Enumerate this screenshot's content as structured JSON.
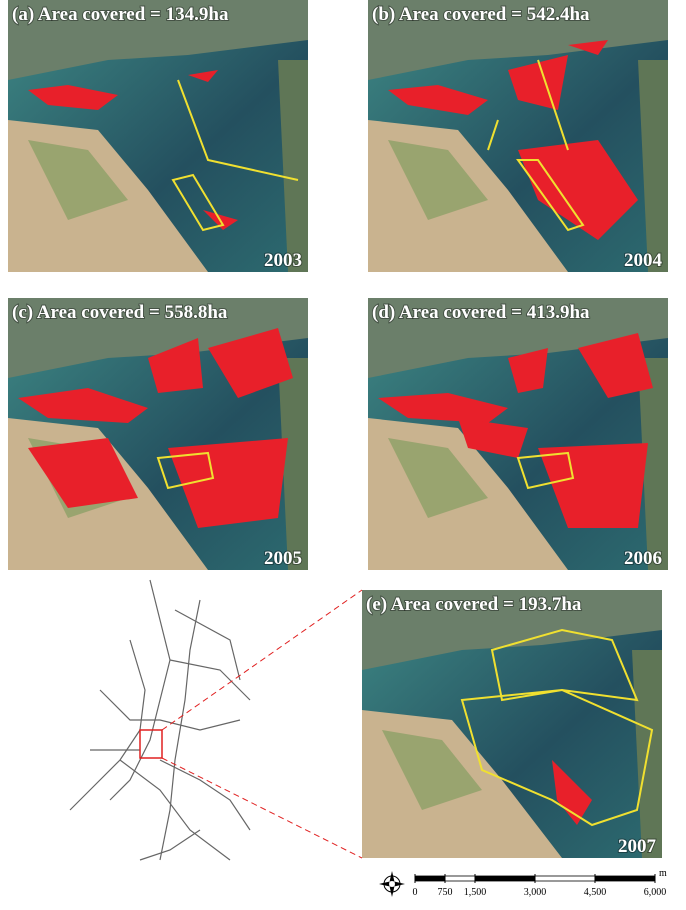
{
  "panels": [
    {
      "label": "(a) Area covered = 134.9ha",
      "year": "2003"
    },
    {
      "label": "(b) Area covered = 542.4ha",
      "year": "2004"
    },
    {
      "label": "(c) Area covered = 558.8ha",
      "year": "2005"
    },
    {
      "label": "(d) Area covered = 413.9ha",
      "year": "2006"
    },
    {
      "label": "(e) Area covered = 193.7ha",
      "year": "2007"
    }
  ],
  "scale_bar": {
    "unit": "m",
    "ticks": [
      0,
      750,
      {
        "value": 1500,
        "label": "1,500"
      },
      {
        "value": 3000,
        "label": "3,000"
      },
      {
        "value": 4500,
        "label": "4,500"
      },
      {
        "value": 6000,
        "label": "6,000"
      }
    ]
  }
}
